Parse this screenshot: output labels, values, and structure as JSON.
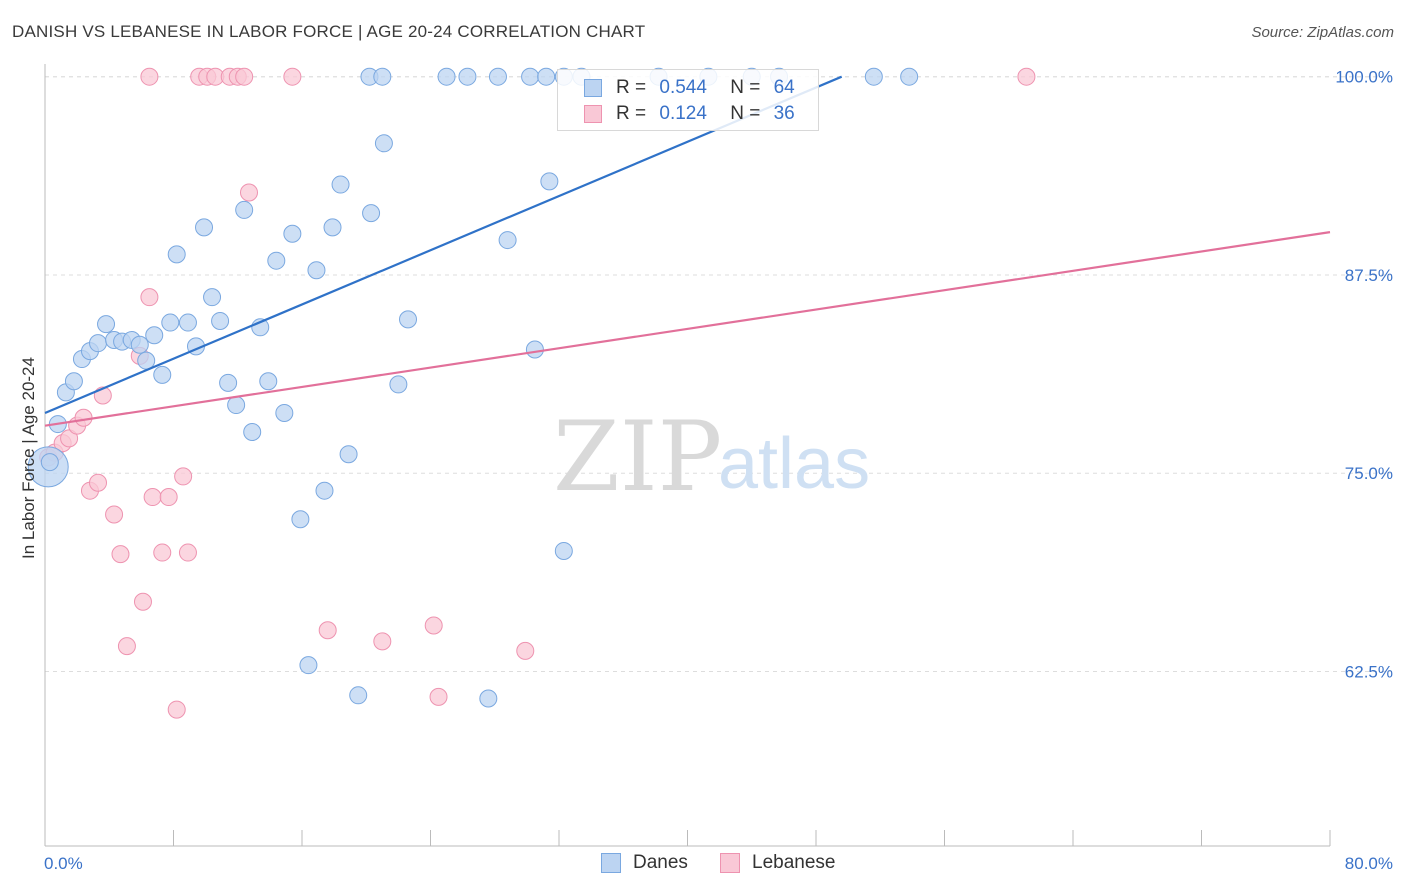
{
  "header": {
    "title": "DANISH VS LEBANESE IN LABOR FORCE | AGE 20-24 CORRELATION CHART",
    "source": "Source: ZipAtlas.com"
  },
  "watermark": {
    "zip": "ZIP",
    "atlas": "atlas"
  },
  "legend": {
    "rows": [
      {
        "r_label": "R =",
        "r_value": "0.544",
        "n_label": "N =",
        "n_value": "64"
      },
      {
        "r_label": "R =",
        "r_value": "0.124",
        "n_label": "N =",
        "n_value": "36"
      }
    ]
  },
  "bottom_legend": {
    "danes": "Danes",
    "lebanese": "Lebanese"
  },
  "colors": {
    "danes_fill": "#bcd4f2",
    "danes_stroke": "#7aa8e0",
    "danes_line": "#2f72c8",
    "lebanese_fill": "#f9c8d6",
    "lebanese_stroke": "#ee93b0",
    "lebanese_line": "#e2709a",
    "axis_label": "#3a72c8",
    "grid": "#dddddd"
  },
  "chart_data": {
    "type": "scatter",
    "title": "DANISH VS LEBANESE IN LABOR FORCE | AGE 20-24 CORRELATION CHART",
    "xlabel": "",
    "ylabel": "In Labor Force | Age 20-24",
    "xlim": [
      0,
      80
    ],
    "ylim": [
      51.5,
      100.8
    ],
    "x_tick_labels": [
      "0.0%",
      "80.0%"
    ],
    "y_ticks": [
      62.5,
      75.0,
      87.5,
      100.0
    ],
    "y_tick_labels": [
      "62.5%",
      "75.0%",
      "87.5%",
      "100.0%"
    ],
    "grid": "horizontal dashed",
    "legend_position": "top-center",
    "series": [
      {
        "name": "Danes",
        "r": 0.544,
        "n": 64,
        "trend": {
          "x": [
            0,
            49.6
          ],
          "y": [
            78.8,
            100.0
          ]
        },
        "points": [
          [
            0.2,
            75.4
          ],
          [
            0.8,
            78.1
          ],
          [
            1.3,
            80.1
          ],
          [
            1.8,
            80.8
          ],
          [
            2.3,
            82.2
          ],
          [
            2.8,
            82.7
          ],
          [
            3.3,
            83.2
          ],
          [
            3.8,
            84.4
          ],
          [
            4.3,
            83.4
          ],
          [
            4.8,
            83.3
          ],
          [
            5.4,
            83.4
          ],
          [
            5.9,
            83.1
          ],
          [
            6.3,
            82.1
          ],
          [
            6.8,
            83.7
          ],
          [
            7.3,
            81.2
          ],
          [
            7.8,
            84.5
          ],
          [
            8.2,
            88.8
          ],
          [
            8.9,
            84.5
          ],
          [
            9.4,
            83.0
          ],
          [
            9.9,
            90.5
          ],
          [
            10.4,
            86.1
          ],
          [
            10.9,
            84.6
          ],
          [
            11.4,
            80.7
          ],
          [
            11.9,
            79.3
          ],
          [
            12.4,
            91.6
          ],
          [
            12.9,
            77.6
          ],
          [
            13.4,
            84.2
          ],
          [
            13.9,
            80.8
          ],
          [
            14.4,
            88.4
          ],
          [
            14.9,
            78.8
          ],
          [
            15.4,
            90.1
          ],
          [
            15.9,
            72.1
          ],
          [
            16.4,
            62.9
          ],
          [
            16.9,
            87.8
          ],
          [
            17.4,
            73.9
          ],
          [
            17.9,
            90.5
          ],
          [
            18.4,
            93.2
          ],
          [
            18.9,
            76.2
          ],
          [
            19.5,
            61.0
          ],
          [
            20.3,
            91.4
          ],
          [
            21.1,
            95.8
          ],
          [
            22.0,
            80.6
          ],
          [
            22.6,
            84.7
          ],
          [
            27.6,
            60.8
          ],
          [
            28.8,
            89.7
          ],
          [
            30.5,
            82.8
          ],
          [
            31.4,
            93.4
          ],
          [
            32.3,
            70.1
          ],
          [
            20.2,
            100.0
          ],
          [
            21.0,
            100.0
          ],
          [
            25.0,
            100.0
          ],
          [
            26.3,
            100.0
          ],
          [
            28.2,
            100.0
          ],
          [
            30.2,
            100.0
          ],
          [
            31.2,
            100.0
          ],
          [
            32.3,
            100.0
          ],
          [
            33.4,
            100.0
          ],
          [
            38.2,
            100.0
          ],
          [
            41.3,
            100.0
          ],
          [
            44.0,
            100.0
          ],
          [
            45.7,
            100.0
          ],
          [
            51.6,
            100.0
          ],
          [
            53.8,
            100.0
          ],
          [
            0.3,
            75.7
          ]
        ]
      },
      {
        "name": "Lebanese",
        "r": 0.124,
        "n": 36,
        "trend": {
          "x": [
            0,
            80
          ],
          "y": [
            78.0,
            90.2
          ]
        },
        "points": [
          [
            0.2,
            76.0
          ],
          [
            0.6,
            76.3
          ],
          [
            1.1,
            76.9
          ],
          [
            1.5,
            77.2
          ],
          [
            2.0,
            78.0
          ],
          [
            2.4,
            78.5
          ],
          [
            2.8,
            73.9
          ],
          [
            3.3,
            74.4
          ],
          [
            3.6,
            79.9
          ],
          [
            4.3,
            72.4
          ],
          [
            4.7,
            69.9
          ],
          [
            5.1,
            64.1
          ],
          [
            5.9,
            82.4
          ],
          [
            6.5,
            86.1
          ],
          [
            6.1,
            66.9
          ],
          [
            6.7,
            73.5
          ],
          [
            7.3,
            70.0
          ],
          [
            7.7,
            73.5
          ],
          [
            8.2,
            60.1
          ],
          [
            8.6,
            74.8
          ],
          [
            8.9,
            70.0
          ],
          [
            12.7,
            92.7
          ],
          [
            17.6,
            65.1
          ],
          [
            21.0,
            64.4
          ],
          [
            24.2,
            65.4
          ],
          [
            24.5,
            60.9
          ],
          [
            29.9,
            63.8
          ],
          [
            6.5,
            100.0
          ],
          [
            9.6,
            100.0
          ],
          [
            10.1,
            100.0
          ],
          [
            10.6,
            100.0
          ],
          [
            11.5,
            100.0
          ],
          [
            12.0,
            100.0
          ],
          [
            12.4,
            100.0
          ],
          [
            15.4,
            100.0
          ],
          [
            61.1,
            100.0
          ]
        ]
      }
    ]
  }
}
